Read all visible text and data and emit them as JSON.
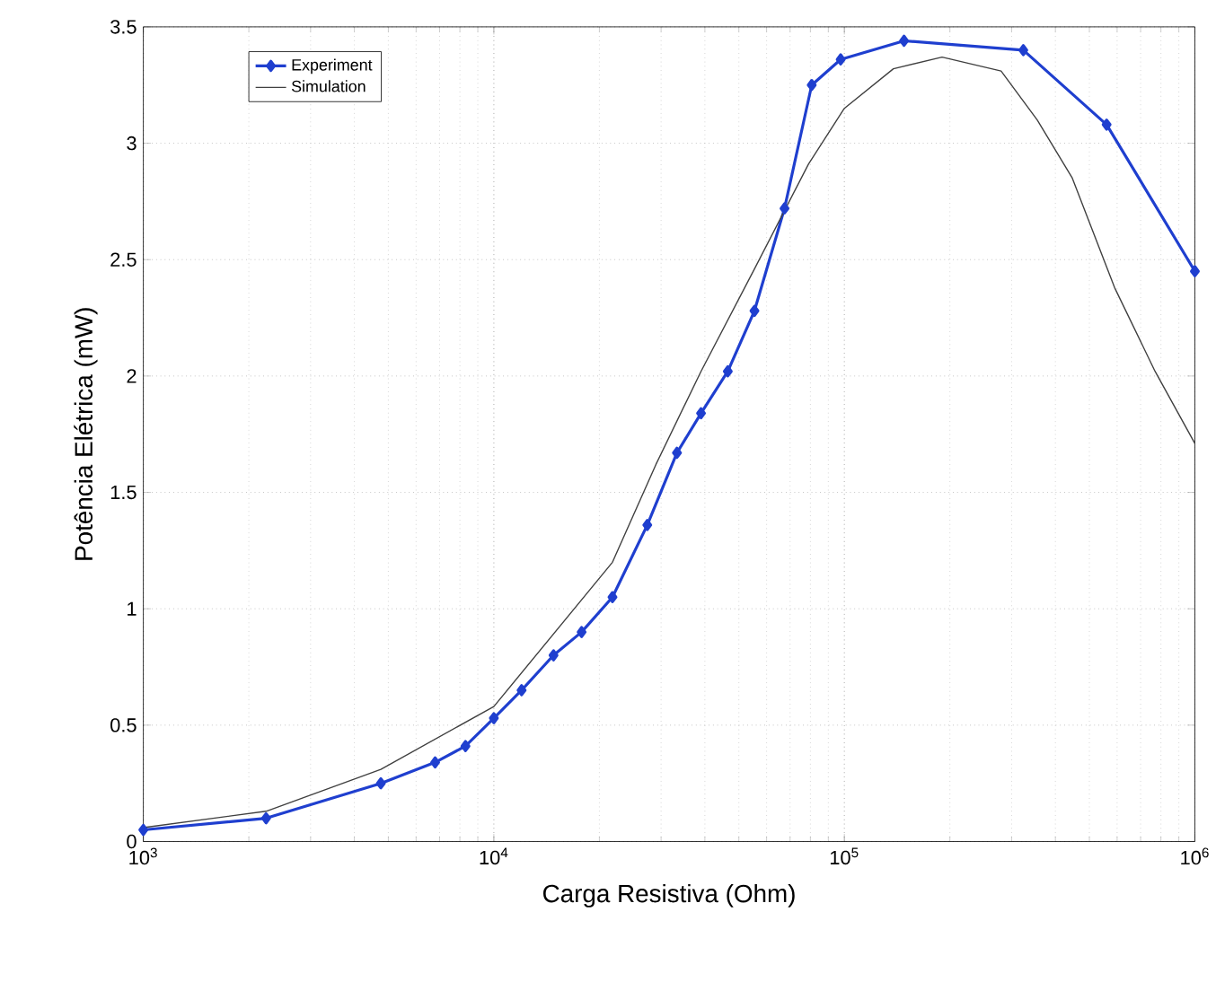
{
  "chart_data": {
    "type": "line",
    "xlabel": "Carga Resistiva (Ohm)",
    "ylabel": "Potência Elétrica (mW)",
    "log": "x",
    "grid": true,
    "legend": "top left",
    "xlim": [
      1000,
      1000000
    ],
    "ylim": [
      0,
      3.5
    ],
    "xticks": [
      {
        "value": 1000,
        "label": "10$^{3}$"
      },
      {
        "value": 10000,
        "label": "10$^{4}$"
      },
      {
        "value": 100000,
        "label": "10$^{5}$"
      },
      {
        "value": 1000000,
        "label": "10$^{6}$"
      }
    ],
    "yticks": [
      0,
      0.5,
      1,
      1.5,
      2,
      2.5,
      3,
      3.5
    ],
    "series": [
      {
        "name": "Experiment",
        "color": "#1f3fcf",
        "marker": "diamond",
        "x": [
          1000,
          2240,
          4760,
          6800,
          8300,
          10000,
          12000,
          14800,
          17800,
          21800,
          27400,
          33300,
          39000,
          46500,
          55400,
          67500,
          80700,
          97600,
          148000,
          324000,
          560000,
          1000000
        ],
        "values": [
          0.05,
          0.1,
          0.25,
          0.34,
          0.41,
          0.53,
          0.65,
          0.8,
          0.9,
          1.05,
          1.36,
          1.67,
          1.84,
          2.02,
          2.28,
          2.72,
          3.25,
          3.36,
          3.44,
          3.4,
          3.08,
          2.45
        ]
      },
      {
        "name": "Simulation",
        "color": "#404040",
        "marker": "none",
        "x": [
          1000,
          2240,
          4760,
          10000,
          21800,
          29000,
          39000,
          55400,
          79000,
          100000,
          138000,
          190000,
          280000,
          355000,
          447000,
          590000,
          770000,
          1000000
        ],
        "values": [
          0.06,
          0.13,
          0.31,
          0.58,
          1.2,
          1.62,
          2.02,
          2.46,
          2.91,
          3.15,
          3.32,
          3.37,
          3.31,
          3.1,
          2.85,
          2.38,
          2.02,
          1.71
        ]
      }
    ]
  }
}
